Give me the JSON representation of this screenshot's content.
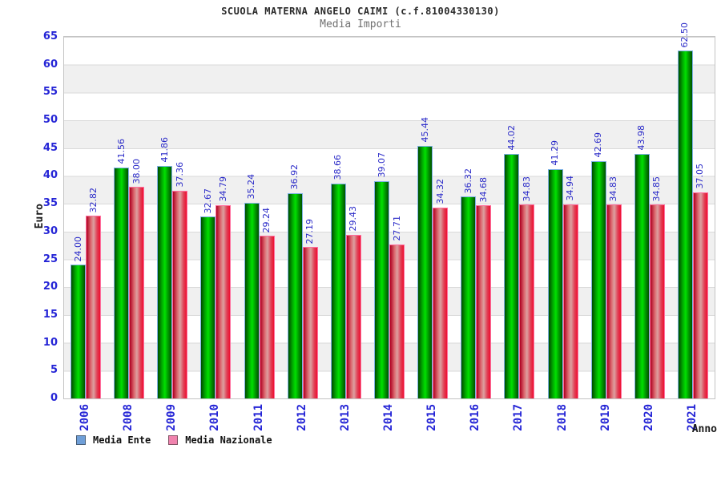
{
  "header": {
    "title": "SCUOLA MATERNA ANGELO CAIMI (c.f.81004330130)",
    "subtitle": "Media Importi"
  },
  "chart_data": {
    "type": "bar",
    "title": "SCUOLA MATERNA ANGELO CAIMI (c.f.81004330130)",
    "subtitle": "Media Importi",
    "xlabel": "Anno",
    "ylabel": "Euro",
    "ylim": [
      0,
      65
    ],
    "ytick_step": 5,
    "yticks": [
      "0",
      "5",
      "10",
      "15",
      "20",
      "25",
      "30",
      "35",
      "40",
      "45",
      "50",
      "55",
      "60",
      "65"
    ],
    "grid": "horizontal gridlines with alternating white/gray bands every 5 units",
    "legend_position": "bottom-left",
    "value_labels": "rotated 90deg above each bar, format 0.00",
    "categories": [
      "2006",
      "2008",
      "2009",
      "2010",
      "2011",
      "2012",
      "2013",
      "2014",
      "2015",
      "2016",
      "2017",
      "2018",
      "2019",
      "2020",
      "2021"
    ],
    "series": [
      {
        "name": "Media Ente",
        "bar_style": "green gradient cylinder with light-blue outline",
        "values": [
          24.0,
          41.56,
          41.86,
          32.67,
          35.24,
          36.92,
          38.66,
          39.07,
          45.44,
          36.32,
          44.02,
          41.29,
          42.69,
          43.98,
          62.5
        ]
      },
      {
        "name": "Media Nazionale",
        "bar_style": "red gradient cylinder with pink outline",
        "values": [
          32.82,
          38.0,
          37.36,
          34.79,
          29.24,
          27.19,
          29.43,
          27.71,
          34.32,
          34.68,
          34.83,
          34.94,
          34.83,
          34.85,
          37.05
        ]
      }
    ]
  },
  "legend": {
    "items": [
      {
        "label": "Media Ente",
        "swatch_color": "#6f9fd8"
      },
      {
        "label": "Media Nazionale",
        "swatch_color": "#f083ae"
      }
    ]
  },
  "colors": {
    "bar_ente_main": "#00e000",
    "bar_ente_border": "#7fb2e5",
    "bar_naz_main": "#dca0a0",
    "bar_naz_border": "#ff6e9e",
    "value_label": "#2a2ac8",
    "axis_tick": "#2525d6",
    "band_gray": "#f0f0f0",
    "grid_line": "#dadada",
    "plot_border": "#c4c4c4"
  }
}
